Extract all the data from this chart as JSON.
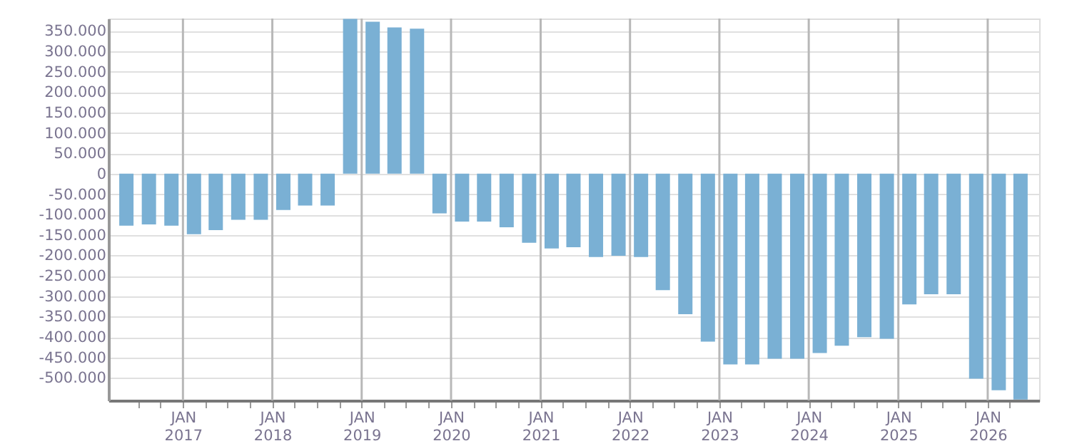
{
  "chart_data": {
    "type": "bar",
    "x": [
      "2016-05-15",
      "2016-08-15",
      "2016-11-15",
      "2017-02-15",
      "2017-05-15",
      "2017-08-15",
      "2017-11-15",
      "2018-02-15",
      "2018-05-15",
      "2018-08-15",
      "2018-11-15",
      "2019-02-15",
      "2019-05-15",
      "2019-08-15",
      "2019-11-15",
      "2020-02-15",
      "2020-05-15",
      "2020-08-15",
      "2020-11-15",
      "2021-02-15",
      "2021-05-15",
      "2021-08-15",
      "2021-11-15",
      "2022-02-15",
      "2022-05-15",
      "2022-08-15",
      "2022-11-15",
      "2023-02-15",
      "2023-05-15",
      "2023-08-15",
      "2023-11-15",
      "2024-02-15",
      "2024-05-15",
      "2024-08-15",
      "2024-11-15",
      "2025-02-15",
      "2025-05-15",
      "2025-08-15",
      "2025-11-15",
      "2026-02-15",
      "2026-05-15"
    ],
    "values": [
      -127000,
      -124000,
      -127000,
      -148000,
      -138000,
      -113000,
      -113000,
      -89000,
      -78000,
      -78000,
      379000,
      372000,
      358000,
      355000,
      -97000,
      -117000,
      -117000,
      -131000,
      -169000,
      -183000,
      -180000,
      -204000,
      -201000,
      -204000,
      -285000,
      -344000,
      -411000,
      -467000,
      -467000,
      -453000,
      -453000,
      -439000,
      -421000,
      -400000,
      -404000,
      -320000,
      -295000,
      -295000,
      -502000,
      -530000,
      -553000
    ],
    "color": "#7ab0d4",
    "xlim": [
      "2016-04-01",
      "2026-07-01"
    ],
    "xticks": [
      {
        "value": "2016-07-01",
        "label": null
      },
      {
        "value": "2016-10-01",
        "label": null
      },
      {
        "value": "2017-01-01",
        "label": "JAN\n2017"
      },
      {
        "value": "2017-04-01",
        "label": null
      },
      {
        "value": "2017-07-01",
        "label": null
      },
      {
        "value": "2017-10-01",
        "label": null
      },
      {
        "value": "2018-01-01",
        "label": "JAN\n2018"
      },
      {
        "value": "2018-04-01",
        "label": null
      },
      {
        "value": "2018-07-01",
        "label": null
      },
      {
        "value": "2018-10-01",
        "label": null
      },
      {
        "value": "2019-01-01",
        "label": "JAN\n2019"
      },
      {
        "value": "2019-04-01",
        "label": null
      },
      {
        "value": "2019-07-01",
        "label": null
      },
      {
        "value": "2019-10-01",
        "label": null
      },
      {
        "value": "2020-01-01",
        "label": "JAN\n2020"
      },
      {
        "value": "2020-04-01",
        "label": null
      },
      {
        "value": "2020-07-01",
        "label": null
      },
      {
        "value": "2020-10-01",
        "label": null
      },
      {
        "value": "2021-01-01",
        "label": "JAN\n2021"
      },
      {
        "value": "2021-04-01",
        "label": null
      },
      {
        "value": "2021-07-01",
        "label": null
      },
      {
        "value": "2021-10-01",
        "label": null
      },
      {
        "value": "2022-01-01",
        "label": "JAN\n2022"
      },
      {
        "value": "2022-04-01",
        "label": null
      },
      {
        "value": "2022-07-01",
        "label": null
      },
      {
        "value": "2022-10-01",
        "label": null
      },
      {
        "value": "2023-01-01",
        "label": "JAN\n2023"
      },
      {
        "value": "2023-04-01",
        "label": null
      },
      {
        "value": "2023-07-01",
        "label": null
      },
      {
        "value": "2023-10-01",
        "label": null
      },
      {
        "value": "2024-01-01",
        "label": "JAN\n2024"
      },
      {
        "value": "2024-04-01",
        "label": null
      },
      {
        "value": "2024-07-01",
        "label": null
      },
      {
        "value": "2024-10-01",
        "label": null
      },
      {
        "value": "2025-01-01",
        "label": "JAN\n2025"
      },
      {
        "value": "2025-04-01",
        "label": null
      },
      {
        "value": "2025-07-01",
        "label": null
      },
      {
        "value": "2025-10-01",
        "label": null
      },
      {
        "value": "2026-01-01",
        "label": "JAN\n2026"
      },
      {
        "value": "2026-04-01",
        "label": null
      }
    ],
    "ylim": [
      -555000,
      380000
    ],
    "yticks": [
      {
        "value": -500000,
        "label": "-500.000"
      },
      {
        "value": -450000,
        "label": "-450.000"
      },
      {
        "value": -400000,
        "label": "-400.000"
      },
      {
        "value": -350000,
        "label": "-350.000"
      },
      {
        "value": -300000,
        "label": "-300.000"
      },
      {
        "value": -250000,
        "label": "-250.000"
      },
      {
        "value": -200000,
        "label": "-200.000"
      },
      {
        "value": -150000,
        "label": "-150.000"
      },
      {
        "value": -100000,
        "label": "-100.000"
      },
      {
        "value": -50000,
        "label": "-50.000"
      },
      {
        "value": 0,
        "label": "0"
      },
      {
        "value": 50000,
        "label": "50.000"
      },
      {
        "value": 100000,
        "label": "100.000"
      },
      {
        "value": 150000,
        "label": "150.000"
      },
      {
        "value": 200000,
        "label": "200.000"
      },
      {
        "value": 250000,
        "label": "250.000"
      },
      {
        "value": 300000,
        "label": "300.000"
      },
      {
        "value": 350000,
        "label": "350.000"
      }
    ],
    "grid": true
  }
}
